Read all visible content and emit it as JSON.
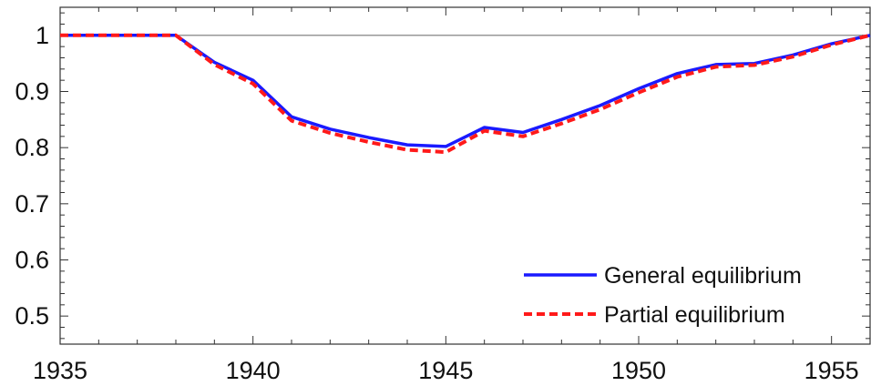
{
  "chart_data": {
    "type": "line",
    "title": "",
    "xlabel": "",
    "ylabel": "",
    "xlim": [
      1935,
      1956
    ],
    "ylim": [
      0.45,
      1.05
    ],
    "x_ticks": [
      1935,
      1940,
      1945,
      1950,
      1955
    ],
    "x_tick_labels": [
      "1935",
      "1940",
      "1945",
      "1950",
      "1955"
    ],
    "y_ticks": [
      0.5,
      0.6,
      0.7,
      0.8,
      0.9,
      1.0
    ],
    "y_tick_labels": [
      "0.5",
      "0.6",
      "0.7",
      "0.8",
      "0.9",
      "1"
    ],
    "reference_line": 1.0,
    "grid": false,
    "legend_position": "bottom-right",
    "x": [
      1935,
      1936,
      1937,
      1938,
      1939,
      1940,
      1941,
      1942,
      1943,
      1944,
      1945,
      1946,
      1947,
      1948,
      1949,
      1950,
      1951,
      1952,
      1953,
      1954,
      1955,
      1956
    ],
    "series": [
      {
        "name": "General equilibrium",
        "color": "#1a1aff",
        "style": "solid",
        "values": [
          1.0,
          1.0,
          1.0,
          1.0,
          0.952,
          0.92,
          0.855,
          0.833,
          0.818,
          0.805,
          0.802,
          0.836,
          0.827,
          0.85,
          0.875,
          0.905,
          0.932,
          0.948,
          0.95,
          0.965,
          0.985,
          1.0
        ]
      },
      {
        "name": "Partial equilibrium",
        "color": "#ff1a1a",
        "style": "dashed",
        "values": [
          1.0,
          1.0,
          1.0,
          1.0,
          0.948,
          0.914,
          0.848,
          0.826,
          0.81,
          0.796,
          0.792,
          0.83,
          0.82,
          0.843,
          0.868,
          0.898,
          0.926,
          0.944,
          0.947,
          0.962,
          0.983,
          1.0
        ]
      }
    ]
  }
}
